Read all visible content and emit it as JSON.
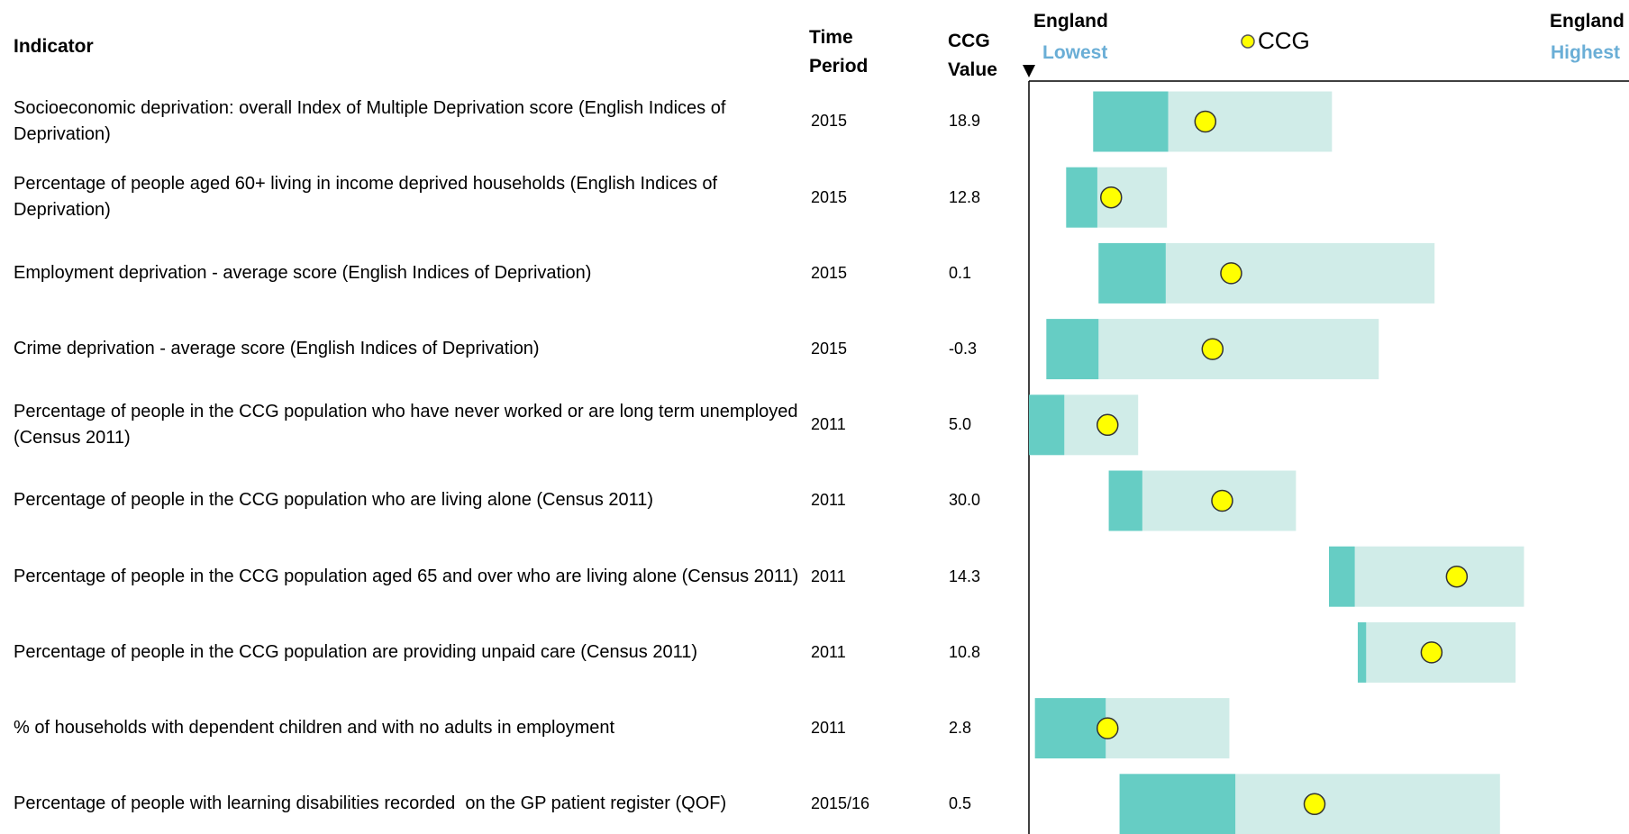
{
  "header": {
    "indicator": "Indicator",
    "time_period": "Time Period",
    "ccg_value": "CCG Value",
    "lowest_top": "England",
    "lowest_bottom": "Lowest",
    "legend": "CCG",
    "highest_top": "England",
    "highest_bottom": "Highest"
  },
  "rows": [
    {
      "indicator": "Socioeconomic deprivation: overall Index of Multiple Deprivation score (English Indices of Deprivation)",
      "period": "2015",
      "value": "18.9",
      "bar": [
        10.7,
        23.2,
        50.5,
        29.4
      ]
    },
    {
      "indicator": "Percentage of people aged 60+ living in income deprived households (English Indices of Deprivation)",
      "period": "2015",
      "value": "12.8",
      "bar": [
        6.2,
        11.4,
        23.0,
        13.7
      ]
    },
    {
      "indicator": "Employment deprivation - average score (English Indices of Deprivation)",
      "period": "2015",
      "value": "0.1",
      "bar": [
        11.6,
        22.8,
        67.6,
        33.7
      ]
    },
    {
      "indicator": "Crime deprivation - average score (English Indices of Deprivation)",
      "period": "2015",
      "value": "-0.3",
      "bar": [
        2.9,
        11.6,
        58.3,
        30.6
      ]
    },
    {
      "indicator": "Percentage of people in the CCG population who have never worked or are long term unemployed (Census 2011)",
      "period": "2011",
      "value": "5.0",
      "bar": [
        0,
        5.9,
        18.2,
        13.1
      ]
    },
    {
      "indicator": "Percentage of people in the CCG population who are living alone (Census 2011)",
      "period": "2011",
      "value": "30.0",
      "bar": [
        13.3,
        18.9,
        44.5,
        32.2
      ]
    },
    {
      "indicator": "Percentage of people in the CCG population aged 65 and over who are living alone (Census 2011)",
      "period": "2011",
      "value": "14.3",
      "bar": [
        50.0,
        54.3,
        82.5,
        71.3
      ]
    },
    {
      "indicator": "Percentage of people in the CCG population are providing unpaid care (Census 2011)",
      "period": "2011",
      "value": "10.8",
      "bar": [
        54.8,
        56.2,
        81.1,
        67.1
      ]
    },
    {
      "indicator": "% of households with dependent children and with no adults in employment",
      "period": "2011",
      "value": "2.8",
      "bar": [
        1.0,
        12.8,
        33.4,
        13.1
      ]
    },
    {
      "indicator": "Percentage of people with learning disabilities recorded  on the GP patient register (QOF)",
      "period": "2015/16",
      "value": "0.5",
      "bar": [
        15.1,
        34.4,
        78.5,
        47.6
      ]
    }
  ]
}
